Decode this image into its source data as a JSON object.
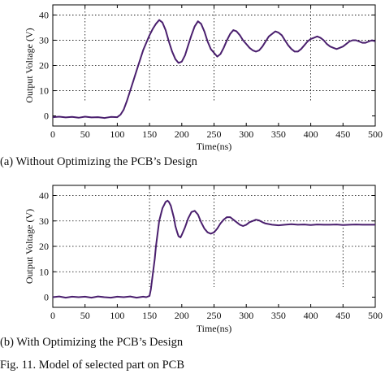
{
  "captions": {
    "a": "(a) Without Optimizing the PCB’s Design",
    "b": "(b) With Optimizing the PCB’s Design",
    "figure": "Fig. 11. Model of selected part on PCB"
  },
  "colors": {
    "trace": "#4a1f6e",
    "axis": "#000000",
    "grid": "#000000"
  },
  "chart_data": [
    {
      "type": "line",
      "title": "",
      "xlabel": "Time(ns)",
      "ylabel": "Output Voltage (V)",
      "xlim": [
        0,
        500
      ],
      "ylim": [
        -4,
        44
      ],
      "xticks": [
        0,
        50,
        100,
        150,
        200,
        250,
        300,
        350,
        400,
        450,
        500
      ],
      "yticks": [
        0,
        10,
        20,
        30,
        40
      ],
      "grid": "dotted",
      "legend": "none",
      "series": [
        {
          "x": [
            0,
            10,
            20,
            30,
            40,
            50,
            60,
            70,
            80,
            90,
            100,
            105,
            110,
            115,
            120,
            125,
            130,
            135,
            140,
            145,
            150,
            155,
            160,
            165,
            170,
            175,
            180,
            185,
            190,
            195,
            200,
            205,
            210,
            215,
            220,
            225,
            230,
            235,
            240,
            245,
            250,
            255,
            260,
            265,
            270,
            275,
            280,
            285,
            290,
            295,
            300,
            305,
            310,
            315,
            320,
            325,
            330,
            335,
            340,
            345,
            350,
            355,
            360,
            365,
            370,
            375,
            380,
            385,
            390,
            395,
            400,
            405,
            410,
            415,
            420,
            425,
            430,
            435,
            440,
            445,
            450,
            455,
            460,
            465,
            470,
            475,
            480,
            485,
            490,
            495,
            500
          ],
          "y": [
            -0.5,
            -0.3,
            -0.6,
            -0.4,
            -0.7,
            -0.3,
            -0.6,
            -0.5,
            -0.8,
            -0.4,
            -0.5,
            0.5,
            2.5,
            6,
            10,
            14,
            18,
            22,
            26,
            29,
            32,
            34.5,
            36.5,
            38,
            37,
            34,
            29.5,
            25.5,
            22.5,
            21,
            21.5,
            24,
            28,
            32,
            35.5,
            37.5,
            36.5,
            33.5,
            29.5,
            26.5,
            25,
            23.5,
            24.5,
            27,
            30,
            32.5,
            34,
            33.5,
            32,
            30,
            28.5,
            27,
            26,
            25.5,
            26,
            27.5,
            29.5,
            31.5,
            32.5,
            33.5,
            33,
            32,
            30,
            28,
            26.5,
            25.5,
            25.5,
            26.5,
            28,
            29.5,
            30.5,
            31,
            31.5,
            31,
            30,
            28.5,
            27.5,
            27,
            26.5,
            27,
            27.5,
            28.5,
            29.5,
            30,
            30,
            29.5,
            29,
            29,
            29.5,
            30,
            29.5
          ]
        }
      ]
    },
    {
      "type": "line",
      "title": "",
      "xlabel": "Time(ns)",
      "ylabel": "Output Voltage (V)",
      "xlim": [
        0,
        500
      ],
      "ylim": [
        -4,
        44
      ],
      "xticks": [
        0,
        50,
        100,
        150,
        200,
        250,
        300,
        350,
        400,
        450,
        500
      ],
      "yticks": [
        0,
        10,
        20,
        30,
        40
      ],
      "grid": "dotted",
      "legend": "none",
      "series": [
        {
          "x": [
            0,
            10,
            20,
            30,
            40,
            50,
            60,
            70,
            80,
            90,
            100,
            110,
            120,
            130,
            140,
            145,
            150,
            152,
            155,
            158,
            160,
            163,
            165,
            168,
            170,
            173,
            175,
            178,
            180,
            183,
            185,
            188,
            190,
            193,
            195,
            198,
            200,
            205,
            210,
            215,
            220,
            225,
            230,
            235,
            240,
            245,
            250,
            255,
            260,
            265,
            270,
            275,
            280,
            285,
            290,
            295,
            300,
            305,
            310,
            315,
            320,
            325,
            330,
            340,
            350,
            360,
            370,
            380,
            390,
            400,
            410,
            420,
            430,
            440,
            450,
            460,
            470,
            480,
            490,
            500
          ],
          "y": [
            0,
            0.3,
            -0.2,
            0.2,
            0,
            0.2,
            -0.2,
            0.3,
            0,
            -0.2,
            0.2,
            0,
            0.3,
            -0.2,
            0.2,
            0,
            0.5,
            3,
            9,
            15,
            20,
            26,
            30,
            33,
            35,
            36.5,
            37.5,
            38,
            37.5,
            36,
            34,
            31,
            28,
            25.5,
            24,
            23.5,
            24.5,
            27.5,
            31,
            33.5,
            34,
            32.5,
            29.5,
            27,
            25.5,
            25,
            25.5,
            27,
            29,
            30.5,
            31.5,
            31.5,
            30.5,
            29.5,
            28.5,
            28,
            28.5,
            29.5,
            30,
            30.5,
            30.2,
            29.5,
            29,
            28.5,
            28.3,
            28.5,
            28.7,
            28.5,
            28.6,
            28.4,
            28.6,
            28.5,
            28.5,
            28.6,
            28.4,
            28.5,
            28.6,
            28.5,
            28.5,
            28.5
          ]
        }
      ]
    }
  ]
}
